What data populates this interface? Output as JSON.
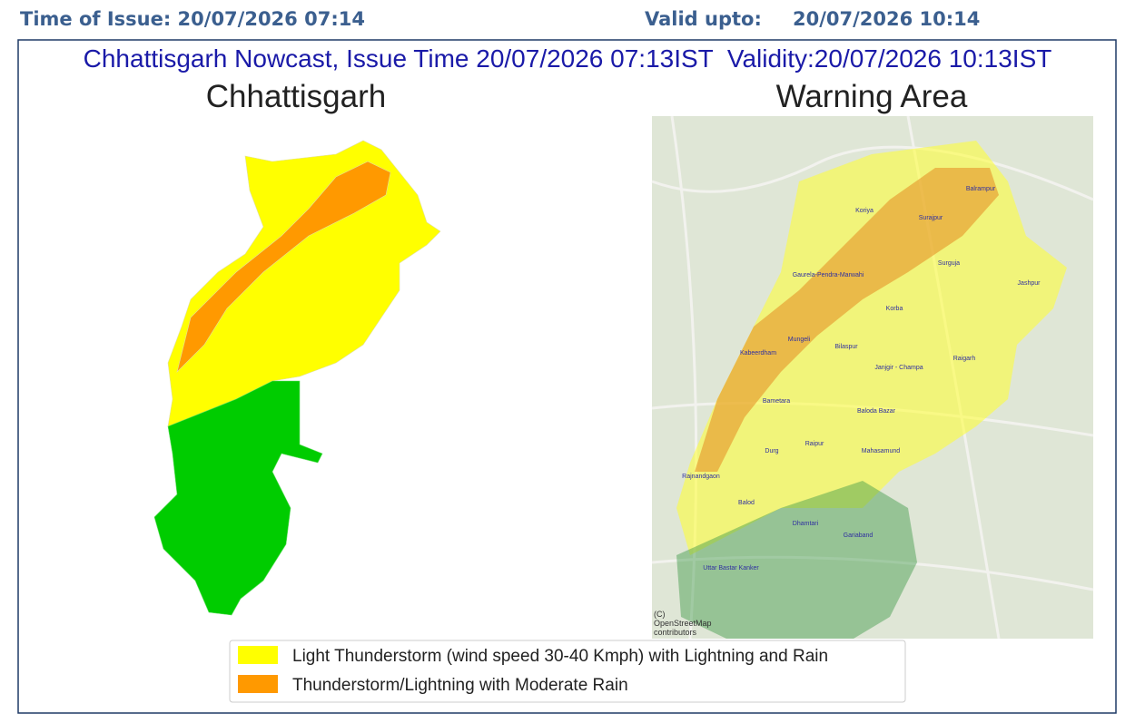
{
  "header": {
    "issue": "Time of Issue: 20/07/2026 07:14",
    "valid_label": "Valid upto:",
    "valid_value": "20/07/2026 10:14"
  },
  "panel": {
    "title": "Chhattisgarh Nowcast, Issue Time 20/07/2026 07:13IST  Validity:20/07/2026 10:13IST",
    "left_title": "Chhattisgarh",
    "right_title": "Warning Area"
  },
  "map": {
    "districts": [
      "Balrampur",
      "Koriya",
      "Surajpur",
      "Surguja",
      "Jashpur",
      "Gaurela-Pendra-Marwahi",
      "Korba",
      "Mungeli",
      "Kabeerdham",
      "Bilaspur",
      "Janjgir - Champa",
      "Raigarh",
      "Bametara",
      "Baloda Bazar",
      "Raipur",
      "Durg",
      "Mahasamund",
      "Rajnandgaon",
      "Balod",
      "Dhamtari",
      "Gariaband",
      "Uttar Bastar Kanker"
    ],
    "attribution": [
      "(C)",
      "OpenStreetMap",
      "contributors"
    ]
  },
  "legend": {
    "items": [
      {
        "label": "Light Thunderstorm (wind speed 30-40 Kmph) with Lightning and Rain",
        "color": "#ffff00"
      },
      {
        "label": "Thunderstorm/Lightning with Moderate Rain",
        "color": "#ff9900"
      }
    ]
  }
}
